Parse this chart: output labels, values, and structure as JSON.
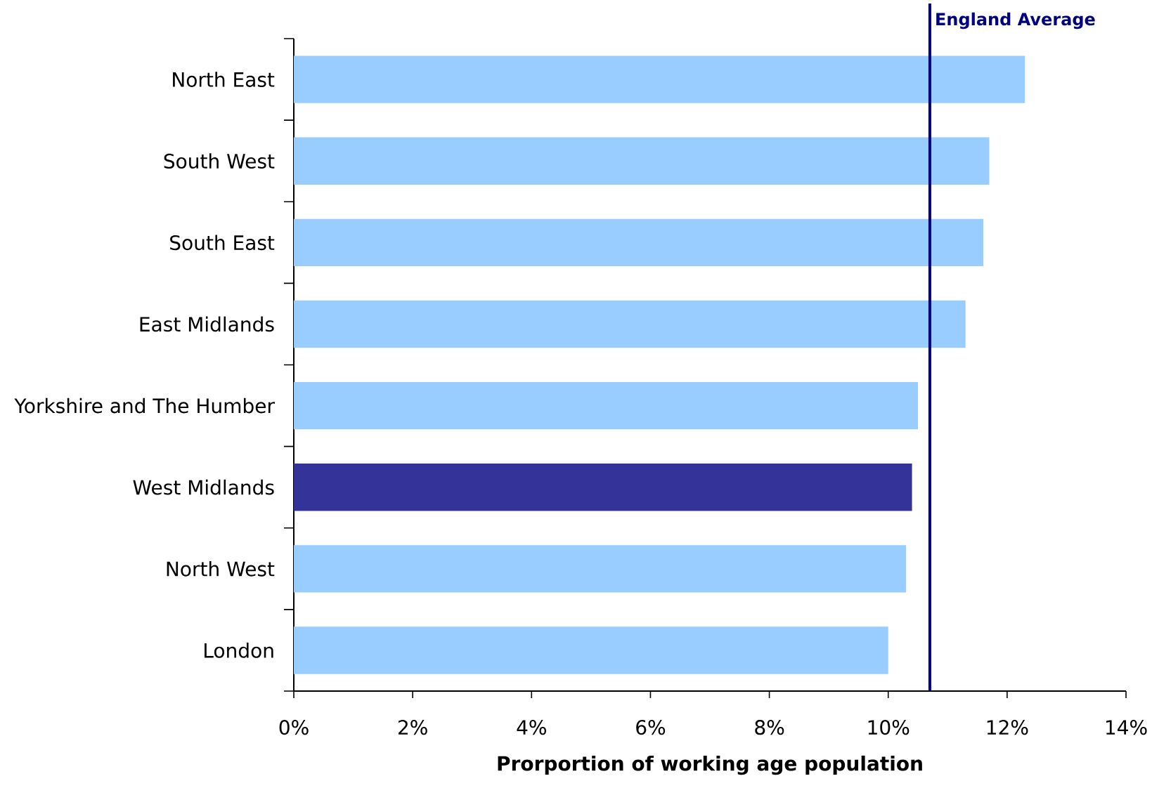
{
  "chart_data": {
    "type": "bar",
    "orientation": "horizontal",
    "xlabel": "Prorportion of working age population",
    "categories": [
      "North East",
      "South West",
      "South East",
      "East Midlands",
      "Yorkshire and The Humber",
      "West Midlands",
      "North West",
      "London"
    ],
    "values": [
      12.3,
      11.7,
      11.6,
      11.3,
      10.5,
      10.4,
      10.3,
      10.0
    ],
    "colors": [
      "#99ccff",
      "#99ccff",
      "#99ccff",
      "#99ccff",
      "#99ccff",
      "#333399",
      "#99ccff",
      "#99ccff"
    ],
    "xlim": [
      0,
      14
    ],
    "xticks": [
      {
        "value": 0,
        "label": "0%"
      },
      {
        "value": 2,
        "label": "2%"
      },
      {
        "value": 4,
        "label": "4%"
      },
      {
        "value": 6,
        "label": "6%"
      },
      {
        "value": 8,
        "label": "8%"
      },
      {
        "value": 10,
        "label": "10%"
      },
      {
        "value": 12,
        "label": "12%"
      },
      {
        "value": 14,
        "label": "14%"
      }
    ],
    "ref_lines": [
      {
        "axis": "x",
        "value": 10.7,
        "label": "England Average",
        "color": "#000080"
      }
    ],
    "grid": false
  }
}
